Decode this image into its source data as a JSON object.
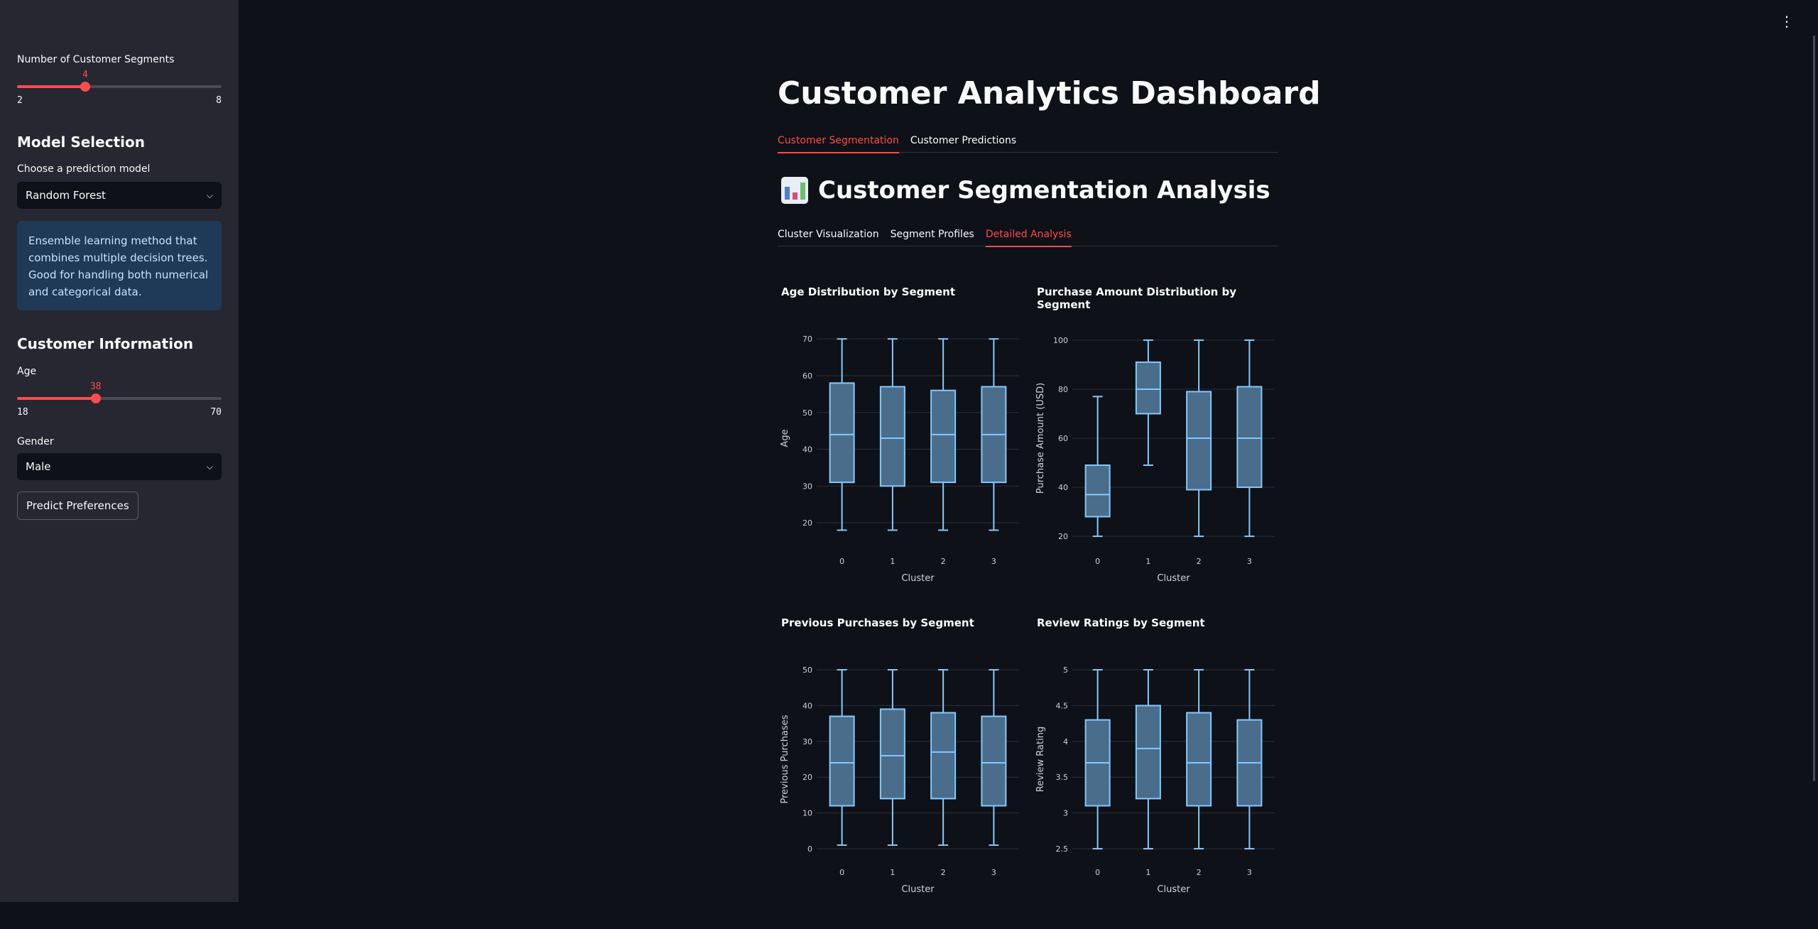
{
  "sidebar": {
    "segments": {
      "label": "Number of Customer Segments",
      "value": 4,
      "min": 2,
      "max": 8
    },
    "model_heading": "Model Selection",
    "model_label": "Choose a prediction model",
    "model_value": "Random Forest",
    "model_info": "Ensemble learning method that combines multiple decision trees. Good for handling both numerical and categorical data.",
    "customer_heading": "Customer Information",
    "age": {
      "label": "Age",
      "value": 38,
      "min": 18,
      "max": 70
    },
    "gender_label": "Gender",
    "gender_value": "Male",
    "predict_button": "Predict Preferences"
  },
  "main": {
    "title": "Customer Analytics Dashboard",
    "tabs": [
      {
        "label": "Customer Segmentation",
        "active": true
      },
      {
        "label": "Customer Predictions",
        "active": false
      }
    ],
    "section_title": "Customer Segmentation Analysis",
    "subtabs": [
      {
        "label": "Cluster Visualization",
        "active": false
      },
      {
        "label": "Segment Profiles",
        "active": false
      },
      {
        "label": "Detailed Analysis",
        "active": true
      }
    ]
  },
  "colors": {
    "accent": "#ff4b4b",
    "box_stroke": "#83c9ff",
    "box_fill": "#4a6d8c"
  },
  "chart_data": [
    {
      "type": "box",
      "title": "Age Distribution by Segment",
      "xlabel": "Cluster",
      "ylabel": "Age",
      "ylim": [
        15,
        71
      ],
      "yticks": [
        20,
        30,
        40,
        50,
        60,
        70
      ],
      "categories": [
        "0",
        "1",
        "2",
        "3"
      ],
      "boxes": [
        {
          "min": 18,
          "q1": 31,
          "median": 44,
          "q3": 58,
          "max": 70
        },
        {
          "min": 18,
          "q1": 30,
          "median": 43,
          "q3": 57,
          "max": 70
        },
        {
          "min": 18,
          "q1": 31,
          "median": 44,
          "q3": 56,
          "max": 70
        },
        {
          "min": 18,
          "q1": 31,
          "median": 44,
          "q3": 57,
          "max": 70
        }
      ]
    },
    {
      "type": "box",
      "title": "Purchase Amount Distribution by Segment",
      "xlabel": "Cluster",
      "ylabel": "Purchase Amount (USD)",
      "ylim": [
        18,
        102
      ],
      "yticks": [
        20,
        40,
        60,
        80,
        100
      ],
      "categories": [
        "0",
        "1",
        "2",
        "3"
      ],
      "boxes": [
        {
          "min": 20,
          "q1": 28,
          "median": 37,
          "q3": 49,
          "max": 77
        },
        {
          "min": 49,
          "q1": 70,
          "median": 80,
          "q3": 91,
          "max": 100
        },
        {
          "min": 20,
          "q1": 39,
          "median": 60,
          "q3": 79,
          "max": 100
        },
        {
          "min": 20,
          "q1": 40,
          "median": 60,
          "q3": 81,
          "max": 100
        }
      ]
    },
    {
      "type": "box",
      "title": "Previous Purchases by Segment",
      "xlabel": "Cluster",
      "ylabel": "Previous Purchases",
      "ylim": [
        -1,
        51
      ],
      "yticks": [
        0,
        10,
        20,
        30,
        40,
        50
      ],
      "categories": [
        "0",
        "1",
        "2",
        "3"
      ],
      "boxes": [
        {
          "min": 1,
          "q1": 12,
          "median": 24,
          "q3": 37,
          "max": 50
        },
        {
          "min": 1,
          "q1": 14,
          "median": 26,
          "q3": 39,
          "max": 50
        },
        {
          "min": 1,
          "q1": 14,
          "median": 27,
          "q3": 38,
          "max": 50
        },
        {
          "min": 1,
          "q1": 12,
          "median": 24,
          "q3": 37,
          "max": 50
        }
      ]
    },
    {
      "type": "box",
      "title": "Review Ratings by Segment",
      "xlabel": "Cluster",
      "ylabel": "Review Rating",
      "ylim": [
        2.45,
        5.05
      ],
      "yticks": [
        2.5,
        3,
        3.5,
        4,
        4.5,
        5
      ],
      "categories": [
        "0",
        "1",
        "2",
        "3"
      ],
      "boxes": [
        {
          "min": 2.5,
          "q1": 3.1,
          "median": 3.7,
          "q3": 4.3,
          "max": 5
        },
        {
          "min": 2.5,
          "q1": 3.2,
          "median": 3.9,
          "q3": 4.5,
          "max": 5
        },
        {
          "min": 2.5,
          "q1": 3.1,
          "median": 3.7,
          "q3": 4.4,
          "max": 5
        },
        {
          "min": 2.5,
          "q1": 3.1,
          "median": 3.7,
          "q3": 4.3,
          "max": 5
        }
      ]
    }
  ]
}
